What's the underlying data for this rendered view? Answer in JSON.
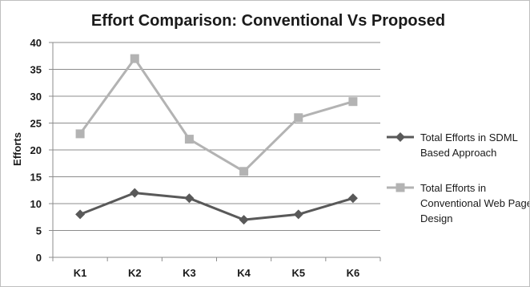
{
  "chart_data": {
    "type": "line",
    "title": "Effort Comparison: Conventional Vs Proposed",
    "xlabel": "",
    "ylabel": "Efforts",
    "categories": [
      "K1",
      "K2",
      "K3",
      "K4",
      "K5",
      "K6"
    ],
    "ylim": [
      0,
      40
    ],
    "yticks": [
      0,
      5,
      10,
      15,
      20,
      25,
      30,
      35,
      40
    ],
    "grid": true,
    "legend_position": "right",
    "series": [
      {
        "name": "Total Efforts in SDML Based Approach",
        "legend_lines": [
          "Total Efforts in SDML",
          "Based Approach"
        ],
        "values": [
          8,
          12,
          11,
          7,
          8,
          11
        ],
        "color": "#595959",
        "marker": "diamond"
      },
      {
        "name": "Total Efforts in Conventional Web Page Design",
        "legend_lines": [
          "Total Efforts in",
          "Conventional Web Page",
          "Design"
        ],
        "values": [
          23,
          37,
          22,
          16,
          26,
          29
        ],
        "color": "#b3b3b3",
        "marker": "square"
      }
    ]
  }
}
